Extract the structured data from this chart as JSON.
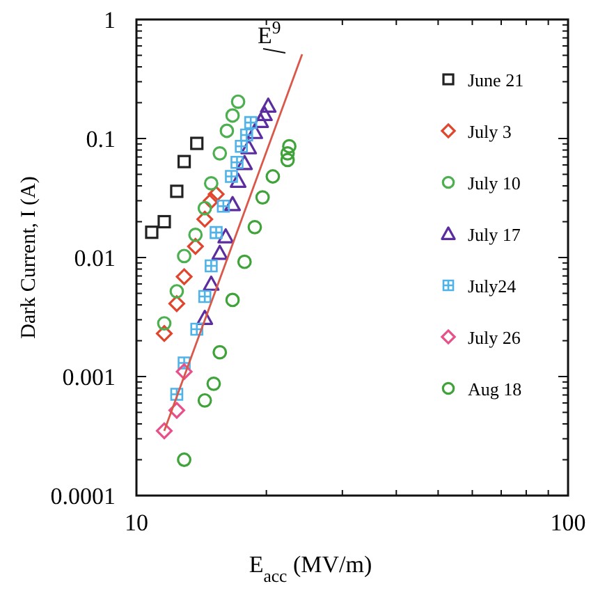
{
  "chart_data": {
    "type": "scatter",
    "xlabel": "E$_{acc}$ (MV/m)",
    "ylabel": "Dark Current, I (A)",
    "log": "xy",
    "legend": "top right",
    "grid": false,
    "xlim": [
      10,
      100
    ],
    "ylim": [
      0.0001,
      1
    ],
    "xticks": [
      10,
      {
        "value": 20,
        "label": null
      },
      {
        "value": 30,
        "label": null
      },
      {
        "value": 40,
        "label": null
      },
      {
        "value": 50,
        "label": null
      },
      {
        "value": 60,
        "label": null
      },
      {
        "value": 70,
        "label": null
      },
      {
        "value": 80,
        "label": null
      },
      {
        "value": 90,
        "label": null
      },
      100
    ],
    "yticks": [
      0.0001,
      {
        "value": 0.0002,
        "label": null
      },
      {
        "value": 0.0003,
        "label": null
      },
      {
        "value": 0.0004,
        "label": null
      },
      {
        "value": 0.0005,
        "label": null
      },
      {
        "value": 0.0006,
        "label": null
      },
      {
        "value": 0.0007,
        "label": null
      },
      {
        "value": 0.0008,
        "label": null
      },
      {
        "value": 0.0009,
        "label": null
      },
      0.001,
      {
        "value": 0.002,
        "label": null
      },
      {
        "value": 0.003,
        "label": null
      },
      {
        "value": 0.004,
        "label": null
      },
      {
        "value": 0.005,
        "label": null
      },
      {
        "value": 0.006,
        "label": null
      },
      {
        "value": 0.007,
        "label": null
      },
      {
        "value": 0.008,
        "label": null
      },
      {
        "value": 0.009,
        "label": null
      },
      0.01,
      {
        "value": 0.02,
        "label": null
      },
      {
        "value": 0.03,
        "label": null
      },
      {
        "value": 0.04,
        "label": null
      },
      {
        "value": 0.05,
        "label": null
      },
      {
        "value": 0.06,
        "label": null
      },
      {
        "value": 0.07,
        "label": null
      },
      {
        "value": 0.08,
        "label": null
      },
      {
        "value": 0.09,
        "label": null
      },
      0.1,
      {
        "value": 0.2,
        "label": null
      },
      {
        "value": 0.3,
        "label": null
      },
      {
        "value": 0.4,
        "label": null
      },
      {
        "value": 0.5,
        "label": null
      },
      {
        "value": 0.6,
        "label": null
      },
      {
        "value": 0.7,
        "label": null
      },
      {
        "value": 0.8,
        "label": null
      },
      {
        "value": 0.9,
        "label": null
      },
      1
    ],
    "annotations": [
      "E$^{9}$"
    ],
    "series": [
      {
        "name": "June 21",
        "color": "#222222",
        "marker": "square",
        "x": [
          10.85,
          11.6,
          12.4,
          12.9,
          13.8
        ],
        "values": [
          0.0163,
          0.02,
          0.036,
          0.064,
          0.091
        ]
      },
      {
        "name": "July 3",
        "color": "#e0452e",
        "marker": "diamond",
        "x": [
          11.6,
          12.4,
          12.9,
          13.7,
          14.4,
          14.9,
          15.3
        ],
        "values": [
          0.0023,
          0.0041,
          0.0069,
          0.0124,
          0.021,
          0.03,
          0.034
        ]
      },
      {
        "name": "July 10",
        "color": "#4caf50",
        "marker": "circle",
        "x": [
          11.6,
          12.4,
          12.9,
          13.7,
          14.4,
          14.9,
          15.6,
          16.2,
          16.7,
          17.2
        ],
        "values": [
          0.0028,
          0.0052,
          0.0103,
          0.0155,
          0.026,
          0.042,
          0.075,
          0.116,
          0.156,
          0.204
        ]
      },
      {
        "name": "July 17",
        "color": "#5b2d9e",
        "marker": "triangle",
        "x": [
          14.4,
          14.9,
          15.6,
          16.1,
          16.7,
          17.2,
          17.8,
          18.2,
          18.8,
          19.4,
          19.8,
          20.2
        ],
        "values": [
          0.0031,
          0.006,
          0.0109,
          0.015,
          0.028,
          0.044,
          0.062,
          0.084,
          0.113,
          0.14,
          0.16,
          0.188
        ]
      },
      {
        "name": "July24",
        "color": "#4fb3ea",
        "marker": "cross",
        "x": [
          12.4,
          12.9,
          13.8,
          14.4,
          14.9,
          15.3,
          15.9,
          16.6,
          17.1,
          17.5,
          18.0,
          18.4
        ],
        "values": [
          0.00071,
          0.0013,
          0.0025,
          0.0047,
          0.0085,
          0.0162,
          0.027,
          0.048,
          0.063,
          0.086,
          0.107,
          0.136
        ]
      },
      {
        "name": "July 26",
        "color": "#e8508a",
        "marker": "diamond",
        "x": [
          11.6,
          12.4,
          12.9
        ],
        "values": [
          0.00035,
          0.00052,
          0.0011
        ]
      },
      {
        "name": "Aug 18",
        "color": "#3fa33a",
        "marker": "circle",
        "x": [
          12.9,
          14.4,
          15.1,
          15.6,
          16.7,
          17.8,
          18.8,
          19.6,
          20.7,
          22.4,
          22.4,
          22.6
        ],
        "values": [
          0.0002,
          0.00063,
          0.00087,
          0.0016,
          0.0044,
          0.0092,
          0.018,
          0.032,
          0.048,
          0.066,
          0.075,
          0.086
        ]
      },
      {
        "type": "line",
        "color": "#d9584a",
        "marker": "none",
        "x": [
          11.6,
          24.2
        ],
        "values": [
          0.00035,
          0.51
        ]
      }
    ]
  }
}
